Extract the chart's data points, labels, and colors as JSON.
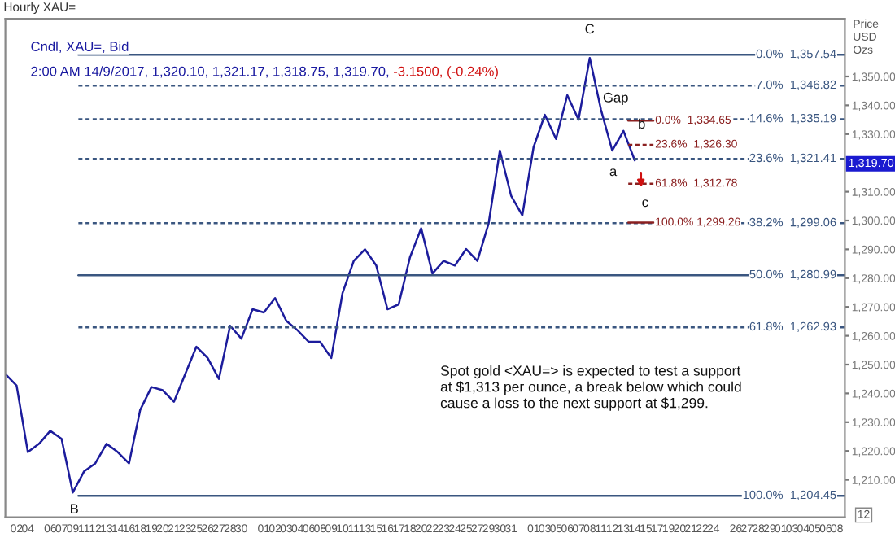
{
  "chart_data": {
    "type": "line",
    "title": "Hourly XAU=",
    "subtitle": "Cndl, XAU=, Bid",
    "ylabel": "Price\nUSD\nOzs",
    "categories": [
      null,
      "02",
      "04",
      null,
      "06",
      "07",
      "09",
      "11",
      "12",
      "13",
      "14",
      "16",
      "18",
      "19",
      "20",
      "21",
      "23",
      "25",
      "26",
      "27",
      "28",
      "30",
      null,
      "01",
      "02",
      "03",
      "04",
      "06",
      "08",
      "09",
      "10",
      "11",
      "13",
      "15",
      "16",
      "17",
      "18",
      "20",
      "22",
      "23",
      "24",
      "25",
      "27",
      "29",
      "30",
      "31",
      null,
      "01",
      "03",
      "05",
      "06",
      "07",
      "08",
      "11",
      "12",
      "13",
      "14",
      "15",
      "17",
      "19",
      "20",
      "21",
      "22",
      "24",
      null,
      "26",
      "27",
      "28",
      "29",
      "01",
      "03",
      "04",
      "05",
      "06",
      "08"
    ],
    "series": [
      {
        "color": "#1c1c9c",
        "values": [
          1246.7,
          1242.7,
          1219.6,
          1222.5,
          1227.0,
          1224.2,
          1205.6,
          1212.9,
          1215.7,
          1222.5,
          1219.6,
          1215.7,
          1234.3,
          1242.2,
          1241.1,
          1237.1,
          1246.7,
          1256.2,
          1252.3,
          1245.0,
          1263.5,
          1259.0,
          1269.2,
          1268.1,
          1273.1,
          1265.2,
          1261.9,
          1257.9,
          1257.9,
          1252.3,
          1274.8,
          1286.0,
          1290.0,
          1284.4,
          1269.2,
          1270.9,
          1287.2,
          1297.3,
          1281.6,
          1286.0,
          1284.4,
          1290.1,
          1286.0,
          1299.0,
          1324.3,
          1308.6,
          1301.8,
          1325.5,
          1336.7,
          1328.3,
          1343.5,
          1335.0,
          1356.4,
          1338.4,
          1324.3,
          1331.1,
          1320.9,
          null,
          null,
          null,
          null,
          null,
          null,
          null,
          null,
          null,
          null,
          null,
          null,
          null,
          null,
          null,
          null,
          null,
          null
        ]
      }
    ],
    "ylim": [
      1197,
      1370
    ],
    "yticks": [
      {
        "value": 1210,
        "label": "1,210.00"
      },
      {
        "value": 1220,
        "label": "1,220.00"
      },
      {
        "value": 1230,
        "label": "1,230.00"
      },
      {
        "value": 1240,
        "label": "1,240.00"
      },
      {
        "value": 1250,
        "label": "1,250.00"
      },
      {
        "value": 1260,
        "label": "1,260.00"
      },
      {
        "value": 1270,
        "label": "1,270.00"
      },
      {
        "value": 1280,
        "label": "1,280.00"
      },
      {
        "value": 1290,
        "label": "1,290.00"
      },
      {
        "value": 1300,
        "label": "1,300.00"
      },
      {
        "value": 1310,
        "label": "1,310.00"
      },
      {
        "value": 1330,
        "label": "1,330.00"
      },
      {
        "value": 1340,
        "label": "1,340.00"
      },
      {
        "value": 1350,
        "label": "1,350.00"
      }
    ],
    "ref_lines": [
      {
        "axis": "y",
        "value": 1357.54,
        "label": "0.0%  1,357.54",
        "color": "#3a5680",
        "line_style": "solid"
      },
      {
        "axis": "y",
        "value": 1346.82,
        "label": "7.0%  1,346.82",
        "color": "#3a5680",
        "line_style": "dashed"
      },
      {
        "axis": "y",
        "value": 1335.19,
        "label": "14.6%  1,335.19",
        "color": "#3a5680",
        "line_style": "dashed"
      },
      {
        "axis": "y",
        "value": 1321.41,
        "label": "23.6%  1,321.41",
        "color": "#3a5680",
        "line_style": "dashed"
      },
      {
        "axis": "y",
        "value": 1299.06,
        "label": "38.2%  1,299.06",
        "color": "#3a5680",
        "line_style": "dashed"
      },
      {
        "axis": "y",
        "value": 1280.99,
        "label": "50.0%  1,280.99",
        "color": "#3a5680",
        "line_style": "solid"
      },
      {
        "axis": "y",
        "value": 1262.93,
        "label": "61.8%  1,262.93",
        "color": "#3a5680",
        "line_style": "dashed"
      },
      {
        "axis": "y",
        "value": 1204.45,
        "label": "100.0%  1,204.45",
        "color": "#3a5680",
        "line_style": "solid"
      },
      {
        "axis": "y",
        "value": 1334.65,
        "label": "0.0%  1,334.65",
        "color": "#8b2020",
        "line_style": "solid"
      },
      {
        "axis": "y",
        "value": 1326.3,
        "label": "23.6%  1,326.30",
        "color": "#8b2020",
        "line_style": "dashed"
      },
      {
        "axis": "y",
        "value": 1312.78,
        "label": "61.8%  1,312.78",
        "color": "#8b2020",
        "line_style": "dashed"
      },
      {
        "axis": "y",
        "value": 1299.26,
        "label": "100.0% 1,299.26",
        "color": "#8b2020",
        "line_style": "solid"
      }
    ],
    "annotations": [
      "2:00 AM 14/9/2017, 1,320.10, 1,321.17, 1,318.75, 1,319.70,",
      " -3.1500, (-0.24%)",
      "Spot gold <XAU=> is expected to test a support\nat $1,313 per ounce, a break below which could\ncause a loss to the next support at $1,299.",
      "12",
      {
        "text": "1,319.70",
        "y": 1319.7
      },
      "C",
      "B",
      "Gap",
      "a",
      "b",
      "c"
    ],
    "grid": false,
    "marker": "none",
    "line_style": "solid"
  }
}
